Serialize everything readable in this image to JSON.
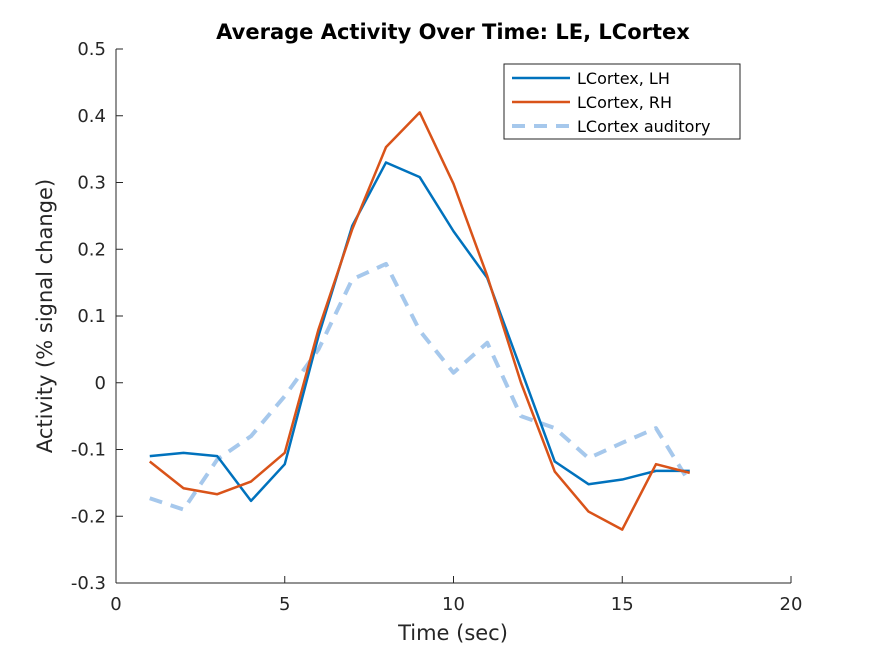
{
  "chart_data": {
    "type": "line",
    "title": "Average Activity Over Time: LE, LCortex",
    "xlabel": "Time (sec)",
    "ylabel": "Activity (% signal change)",
    "xlim": [
      0,
      20
    ],
    "ylim": [
      -0.3,
      0.5
    ],
    "xticks": [
      0,
      5,
      10,
      15,
      20
    ],
    "yticks": [
      -0.3,
      -0.2,
      -0.1,
      0,
      0.1,
      0.2,
      0.3,
      0.4,
      0.5
    ],
    "xtick_labels": [
      "0",
      "5",
      "10",
      "15",
      "20"
    ],
    "ytick_labels": [
      "-0.3",
      "-0.2",
      "-0.1",
      "0",
      "0.1",
      "0.2",
      "0.3",
      "0.4",
      "0.5"
    ],
    "grid": false,
    "legend_position": "top-right",
    "x": [
      1,
      2,
      3,
      4,
      5,
      6,
      7,
      8,
      9,
      10,
      11,
      12,
      13,
      14,
      15,
      16,
      17
    ],
    "series": [
      {
        "name": "LCortex, LH",
        "color": "#0072bd",
        "style": "solid",
        "values": [
          -0.11,
          -0.105,
          -0.11,
          -0.177,
          -0.122,
          0.07,
          0.235,
          0.33,
          0.308,
          0.227,
          0.157,
          0.02,
          -0.118,
          -0.152,
          -0.145,
          -0.132,
          -0.132
        ]
      },
      {
        "name": "LCortex, RH",
        "color": "#d95319",
        "style": "solid",
        "values": [
          -0.118,
          -0.158,
          -0.167,
          -0.148,
          -0.105,
          0.08,
          0.23,
          0.353,
          0.405,
          0.298,
          0.16,
          0.0,
          -0.133,
          -0.193,
          -0.22,
          -0.122,
          -0.135
        ]
      },
      {
        "name": "LCortex auditory",
        "color": "#a6c8ec",
        "style": "dashed",
        "values": [
          -0.173,
          -0.19,
          -0.115,
          -0.08,
          -0.02,
          0.05,
          0.155,
          0.178,
          0.078,
          0.015,
          0.06,
          -0.05,
          -0.068,
          -0.113,
          -0.09,
          -0.068,
          -0.15
        ]
      }
    ]
  }
}
